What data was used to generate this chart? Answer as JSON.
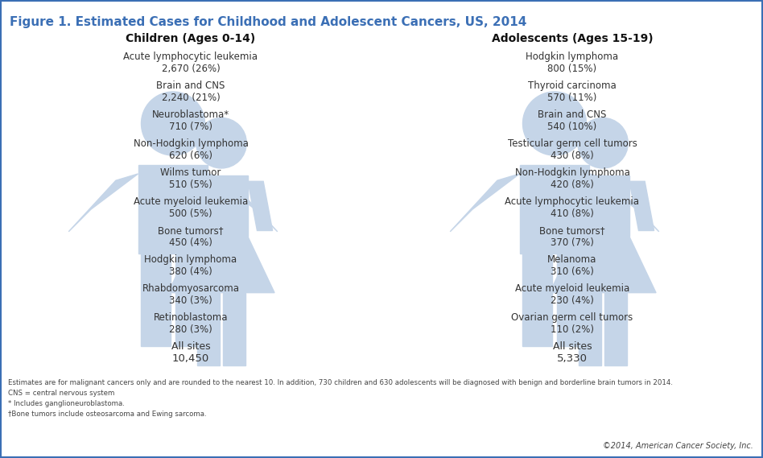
{
  "title": "Figure 1. Estimated Cases for Childhood and Adolescent Cancers, US, 2014",
  "title_color": "#3B6FB5",
  "title_fontsize": 11,
  "background_color": "#FFFFFF",
  "left_header": "Children (Ages 0-14)",
  "right_header": "Adolescents (Ages 15-19)",
  "left_items": [
    {
      "label": "Acute lymphocytic leukemia",
      "value": "2,670 (26%)"
    },
    {
      "label": "Brain and CNS",
      "value": "2,240 (21%)"
    },
    {
      "label": "Neuroblastoma*",
      "value": "710 (7%)"
    },
    {
      "label": "Non-Hodgkin lymphoma",
      "value": "620 (6%)"
    },
    {
      "label": "Wilms tumor",
      "value": "510 (5%)"
    },
    {
      "label": "Acute myeloid leukemia",
      "value": "500 (5%)"
    },
    {
      "label": "Bone tumors†",
      "value": "450 (4%)"
    },
    {
      "label": "Hodgkin lymphoma",
      "value": "380 (4%)"
    },
    {
      "label": "Rhabdomyosarcoma",
      "value": "340 (3%)"
    },
    {
      "label": "Retinoblastoma",
      "value": "280 (3%)"
    },
    {
      "label": "All sites",
      "value": "10,450"
    }
  ],
  "right_items": [
    {
      "label": "Hodgkin lymphoma",
      "value": "800 (15%)"
    },
    {
      "label": "Thyroid carcinoma",
      "value": "570 (11%)"
    },
    {
      "label": "Brain and CNS",
      "value": "540 (10%)"
    },
    {
      "label": "Testicular germ cell tumors",
      "value": "430 (8%)"
    },
    {
      "label": "Non-Hodgkin lymphoma",
      "value": "420 (8%)"
    },
    {
      "label": "Acute lymphocytic leukemia",
      "value": "410 (8%)"
    },
    {
      "label": "Bone tumors†",
      "value": "370 (7%)"
    },
    {
      "label": "Melanoma",
      "value": "310 (6%)"
    },
    {
      "label": "Acute myeloid leukemia",
      "value": "230 (4%)"
    },
    {
      "label": "Ovarian germ cell tumors",
      "value": "110 (2%)"
    },
    {
      "label": "All sites",
      "value": "5,330"
    }
  ],
  "footnotes": [
    "Estimates are for malignant cancers only and are rounded to the nearest 10. In addition, 730 children and 630 adolescents will be diagnosed with benign and borderline brain tumors in 2014.",
    "CNS = central nervous system",
    "* Includes ganglioneuroblastoma.",
    "†Bone tumors include osteosarcoma and Ewing sarcoma."
  ],
  "copyright": "©2014, American Cancer Society, Inc.",
  "figure_color": "#C5D5E8",
  "label_color": "#333333",
  "value_color": "#333333",
  "header_color": "#111111",
  "border_color": "#3B6FB5"
}
